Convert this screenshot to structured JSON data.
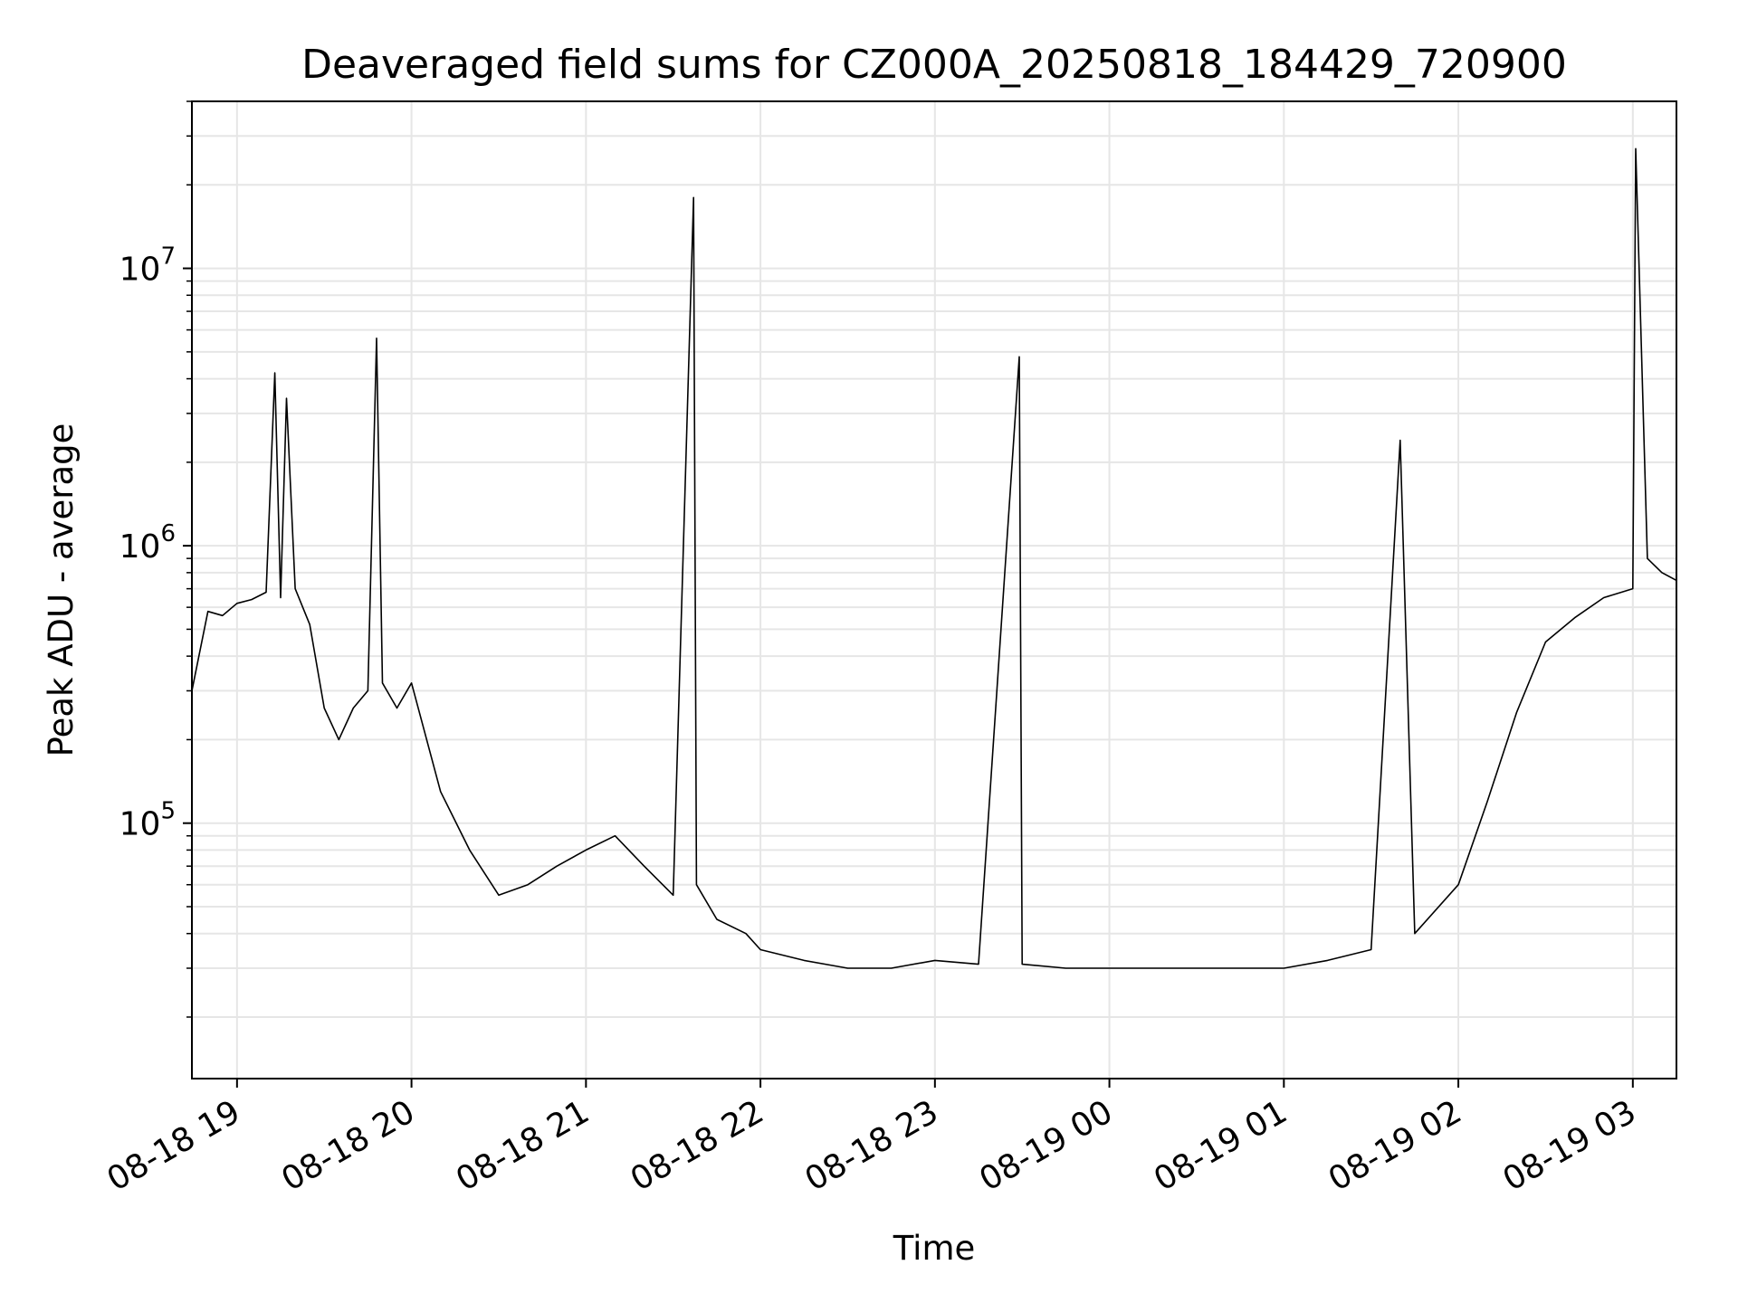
{
  "chart_data": {
    "type": "line",
    "title": "Deaveraged field sums for CZ000A_20250818_184429_720900",
    "xlabel": "Time",
    "ylabel": "Peak ADU - average",
    "yscale": "log",
    "xlim": [
      "2025-08-18 18:44:29",
      "2025-08-19 03:15:00"
    ],
    "ylim": [
      12000,
      40000000
    ],
    "grid": true,
    "legend": "none",
    "line_color": "#000000",
    "grid_color": "#e6e6e6",
    "x_ticks": [
      {
        "value": "2025-08-18 19:00",
        "label": "08-18 19"
      },
      {
        "value": "2025-08-18 20:00",
        "label": "08-18 20"
      },
      {
        "value": "2025-08-18 21:00",
        "label": "08-18 21"
      },
      {
        "value": "2025-08-18 22:00",
        "label": "08-18 22"
      },
      {
        "value": "2025-08-18 23:00",
        "label": "08-18 23"
      },
      {
        "value": "2025-08-19 00:00",
        "label": "08-19 00"
      },
      {
        "value": "2025-08-19 01:00",
        "label": "08-19 01"
      },
      {
        "value": "2025-08-19 02:00",
        "label": "08-19 02"
      },
      {
        "value": "2025-08-19 03:00",
        "label": "08-19 03"
      }
    ],
    "y_ticks": [
      {
        "value": 100000,
        "base": "10",
        "exp": "5"
      },
      {
        "value": 1000000,
        "base": "10",
        "exp": "6"
      },
      {
        "value": 10000000,
        "base": "10",
        "exp": "7"
      }
    ],
    "series": [
      {
        "x": [
          "2025-08-18 18:44:29",
          "2025-08-18 18:50",
          "2025-08-18 18:55",
          "2025-08-18 19:00",
          "2025-08-18 19:05",
          "2025-08-18 19:10",
          "2025-08-18 19:13",
          "2025-08-18 19:15",
          "2025-08-18 19:17",
          "2025-08-18 19:20",
          "2025-08-18 19:25",
          "2025-08-18 19:30",
          "2025-08-18 19:35",
          "2025-08-18 19:40",
          "2025-08-18 19:45",
          "2025-08-18 19:48",
          "2025-08-18 19:50",
          "2025-08-18 19:55",
          "2025-08-18 20:00",
          "2025-08-18 20:10",
          "2025-08-18 20:20",
          "2025-08-18 20:30",
          "2025-08-18 20:40",
          "2025-08-18 20:50",
          "2025-08-18 21:00",
          "2025-08-18 21:10",
          "2025-08-18 21:20",
          "2025-08-18 21:30",
          "2025-08-18 21:37",
          "2025-08-18 21:38",
          "2025-08-18 21:45",
          "2025-08-18 21:55",
          "2025-08-18 22:00",
          "2025-08-18 22:15",
          "2025-08-18 22:30",
          "2025-08-18 22:45",
          "2025-08-18 23:00",
          "2025-08-18 23:15",
          "2025-08-18 23:29",
          "2025-08-18 23:30",
          "2025-08-18 23:45",
          "2025-08-19 00:00",
          "2025-08-19 00:15",
          "2025-08-19 00:30",
          "2025-08-19 00:45",
          "2025-08-19 01:00",
          "2025-08-19 01:15",
          "2025-08-19 01:30",
          "2025-08-19 01:40",
          "2025-08-19 01:45",
          "2025-08-19 02:00",
          "2025-08-19 02:10",
          "2025-08-19 02:20",
          "2025-08-19 02:30",
          "2025-08-19 02:40",
          "2025-08-19 02:50",
          "2025-08-19 03:00",
          "2025-08-19 03:01",
          "2025-08-19 03:05",
          "2025-08-19 03:10",
          "2025-08-19 03:15"
        ],
        "y": [
          300000,
          580000,
          560000,
          620000,
          640000,
          680000,
          4200000,
          650000,
          3400000,
          700000,
          520000,
          260000,
          200000,
          260000,
          300000,
          5600000,
          320000,
          260000,
          320000,
          130000,
          80000,
          55000,
          60000,
          70000,
          80000,
          90000,
          70000,
          55000,
          18000000,
          60000,
          45000,
          40000,
          35000,
          32000,
          30000,
          30000,
          32000,
          31000,
          4800000,
          31000,
          30000,
          30000,
          30000,
          30000,
          30000,
          30000,
          32000,
          35000,
          2400000,
          40000,
          60000,
          120000,
          250000,
          450000,
          550000,
          650000,
          700000,
          27000000,
          900000,
          800000,
          750000
        ]
      }
    ]
  }
}
